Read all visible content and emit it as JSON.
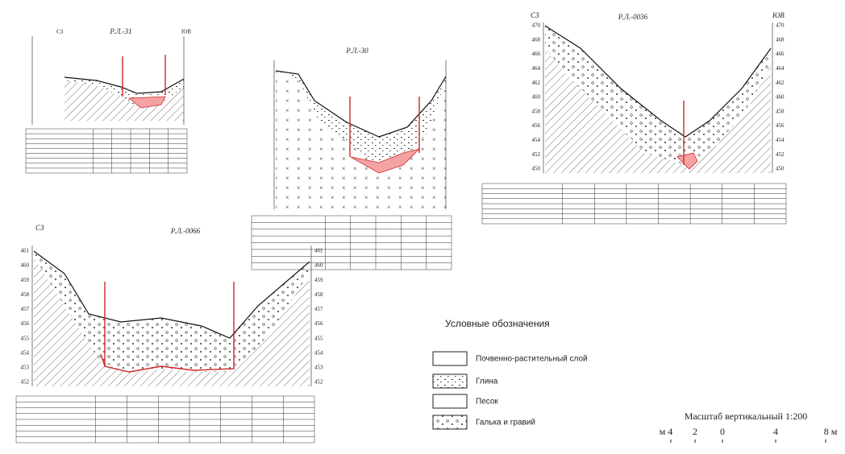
{
  "sections": [
    {
      "title": "Р.Л.-31",
      "left": "СЗ",
      "right": "ЮВ"
    },
    {
      "title": "Р.Л.-30"
    },
    {
      "title": "Р.Л.-0036",
      "left": "СЗ",
      "right": "ЮВ",
      "elevations": [
        "470",
        "468",
        "466",
        "464",
        "462",
        "460",
        "458",
        "456",
        "454",
        "452",
        "450"
      ]
    },
    {
      "title": "Р.Л.-0066",
      "left": "СЗ",
      "elevations": [
        "461",
        "460",
        "459",
        "458",
        "457",
        "456",
        "455",
        "454",
        "453",
        "452"
      ]
    }
  ],
  "legend": {
    "title": "Условные обозначения",
    "items": [
      "Почвенно-растительный слой",
      "Глина",
      "Песок",
      "Галька и гравий"
    ]
  },
  "scale": {
    "title": "Масштаб вертикальный 1:200",
    "labels": [
      "м 4",
      "2",
      "0",
      "4",
      "8 м"
    ]
  }
}
